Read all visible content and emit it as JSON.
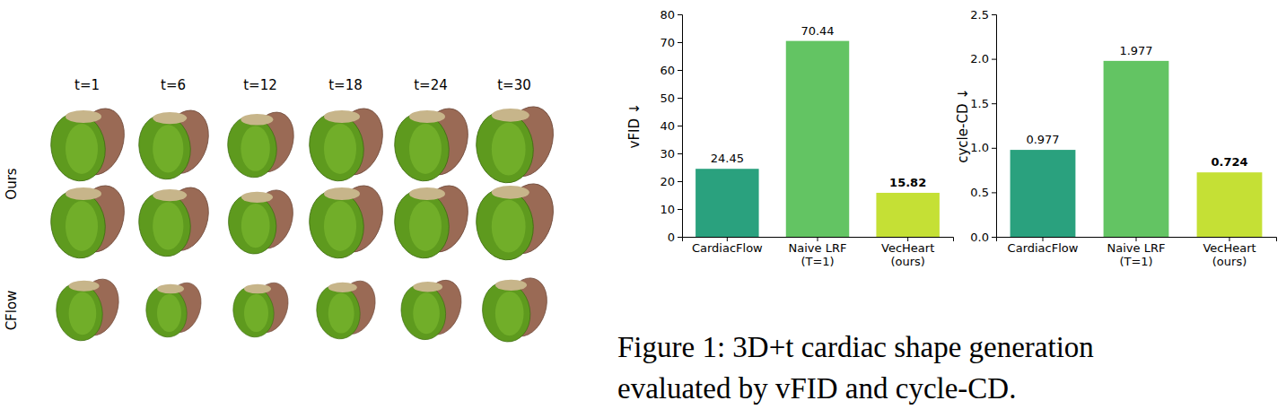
{
  "figure": {
    "time_labels": [
      "t=1",
      "t=6",
      "t=12",
      "t=18",
      "t=24",
      "t=30"
    ],
    "row_labels": [
      "Ours",
      "CFlow"
    ],
    "caption_lines": [
      "Figure 1: 3D+t cardiac shape generation",
      "evaluated by vFID and cycle-CD."
    ]
  },
  "chart_data": [
    {
      "type": "bar",
      "ylabel": "vFID ↓",
      "categories": [
        "CardiacFlow",
        "Naive LRF (T=1)",
        "VecHeart (ours)"
      ],
      "values": [
        24.45,
        70.44,
        15.82
      ],
      "colors": [
        "#2aa17e",
        "#63c463",
        "#c5e035"
      ],
      "ylim": [
        0,
        80
      ],
      "yticks": [
        0,
        10,
        20,
        30,
        40,
        50,
        60,
        70,
        80
      ],
      "data_labels": true
    },
    {
      "type": "bar",
      "ylabel": "cycle-CD ↓",
      "categories": [
        "CardiacFlow",
        "Naive LRF (T=1)",
        "VecHeart (ours)"
      ],
      "values": [
        0.977,
        1.977,
        0.724
      ],
      "colors": [
        "#2aa17e",
        "#63c463",
        "#c5e035"
      ],
      "ylim": [
        0,
        2.5
      ],
      "yticks": [
        {
          "value": 0,
          "label": "0.0"
        },
        {
          "value": 0.5,
          "label": "0.5"
        },
        {
          "value": 1,
          "label": "1.0"
        },
        {
          "value": 1.5,
          "label": "1.5"
        },
        {
          "value": 2,
          "label": "2.0"
        },
        {
          "value": 2.5,
          "label": "2.5"
        }
      ],
      "data_labels": true
    }
  ]
}
